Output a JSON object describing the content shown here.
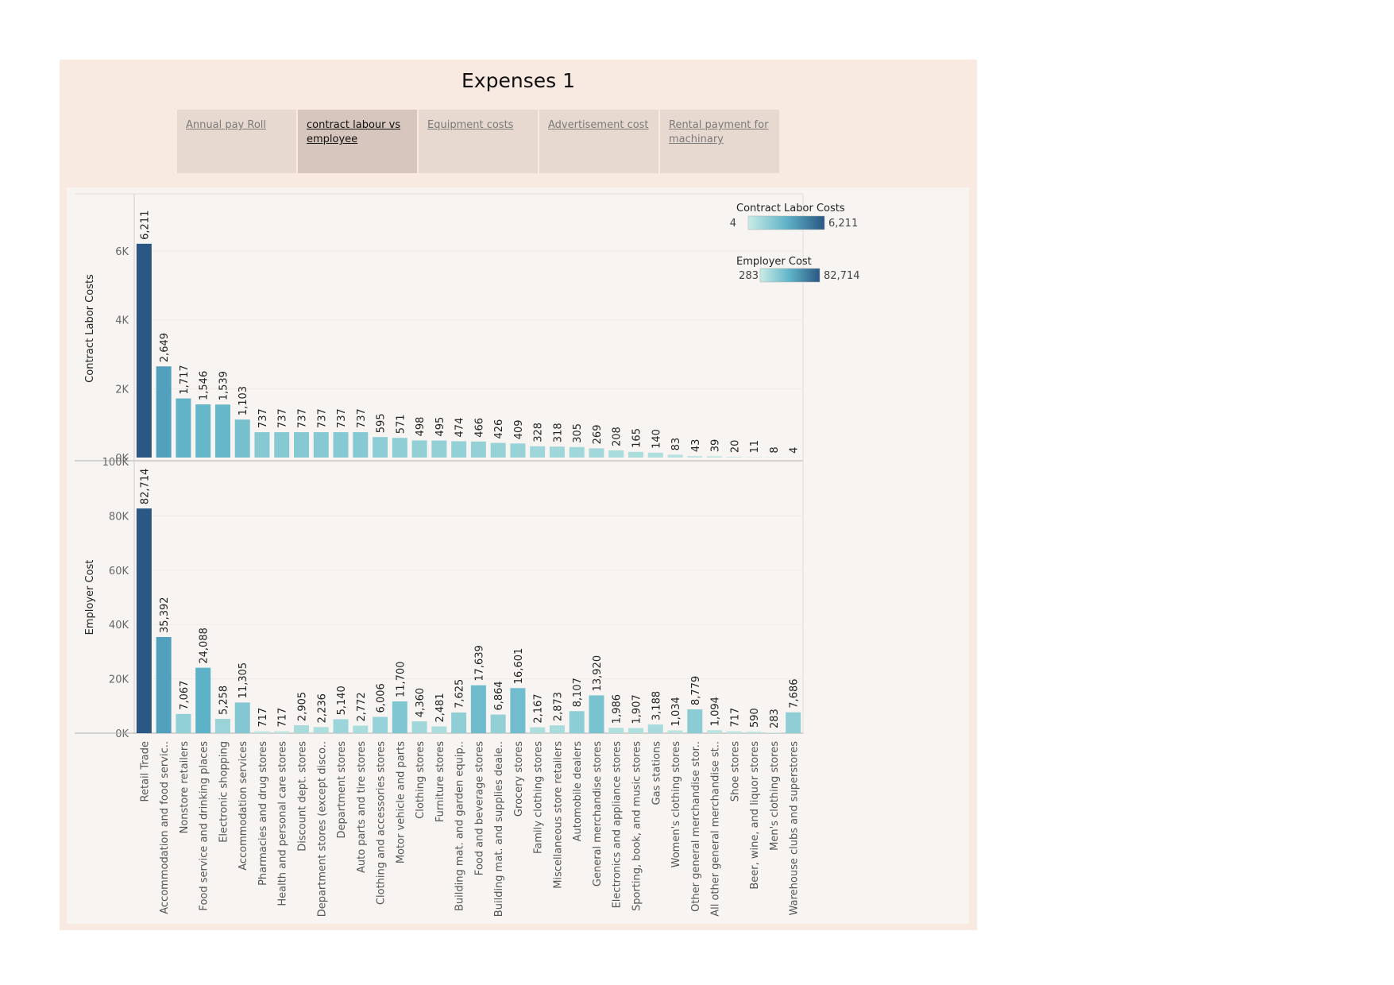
{
  "dashboard": {
    "title": "Expenses 1",
    "tabs": [
      {
        "label": "Annual pay Roll",
        "active": false
      },
      {
        "label": "contract labour vs employee",
        "active": true
      },
      {
        "label": "Equipment costs",
        "active": false
      },
      {
        "label": "Advertisement cost",
        "active": false
      },
      {
        "label": "Rental payment for machinary",
        "active": false
      }
    ]
  },
  "colors": {
    "dashboard_bg": "#f8e9e1",
    "chart_bg": "#f8f4f1",
    "scale_low": "#c9ece6",
    "scale_high": "#2a5783"
  },
  "chart_data": {
    "type": "bar",
    "categories": [
      "Retail Trade",
      "Accommodation and food servic..",
      "Nonstore retailers",
      "Food service and drinking places",
      "Electronic shopping",
      "Accommodation services",
      "Pharmacies and drug stores",
      "Health and personal care stores",
      "Discount dept. stores",
      "Department stores (except disco..",
      "Department stores",
      "Auto parts and tire stores",
      "Clothing and accessories stores",
      "Motor vehicle and parts",
      "Clothing stores",
      "Furniture stores",
      "Building mat. and garden equip..",
      "Food and beverage stores",
      "Building mat. and supplies deale..",
      "Grocery stores",
      "Family clothing stores",
      "Miscellaneous store retailers",
      "Automobile dealers",
      "General merchandise stores",
      "Electronics and appliance stores",
      "Sporting, book, and music stores",
      "Gas stations",
      "Women's clothing stores",
      "Other general merchandise stor..",
      "All other general merchandise st..",
      "Shoe stores",
      "Beer, wine, and liquor stores",
      "Men's clothing stores",
      "Warehouse clubs and superstores"
    ],
    "series": [
      {
        "name": "Contract Labor Costs",
        "values": [
          6211,
          2649,
          1717,
          1546,
          1539,
          1103,
          737,
          737,
          737,
          737,
          737,
          737,
          595,
          571,
          498,
          495,
          474,
          466,
          426,
          409,
          328,
          318,
          305,
          269,
          208,
          165,
          140,
          83,
          43,
          39,
          20,
          11,
          8,
          4
        ],
        "labels": [
          "6,211",
          "2,649",
          "1,717",
          "1,546",
          "1,539",
          "1,103",
          "737",
          "737",
          "737",
          "737",
          "737",
          "737",
          "595",
          "571",
          "498",
          "495",
          "474",
          "466",
          "426",
          "409",
          "328",
          "318",
          "305",
          "269",
          "208",
          "165",
          "140",
          "83",
          "43",
          "39",
          "20",
          "11",
          "8",
          "4"
        ],
        "ylabel": "Contract Labor Costs",
        "ylim": [
          0,
          7500
        ],
        "yticks": [
          0,
          2000,
          4000,
          6000
        ],
        "ytick_labels": [
          "0K",
          "2K",
          "4K",
          "6K"
        ],
        "legend": {
          "title": "Contract Labor Costs",
          "min": "4",
          "max": "6,211"
        }
      },
      {
        "name": "Employer Cost",
        "values": [
          82714,
          35392,
          7067,
          24088,
          5258,
          11305,
          717,
          717,
          2905,
          2236,
          5140,
          2772,
          6006,
          11700,
          4360,
          2481,
          7625,
          17639,
          6864,
          16601,
          2167,
          2873,
          8107,
          13920,
          1986,
          1907,
          3188,
          1034,
          8779,
          1094,
          717,
          590,
          283,
          7686
        ],
        "labels": [
          "82,714",
          "35,392",
          "7,067",
          "24,088",
          "5,258",
          "11,305",
          "717",
          "717",
          "2,905",
          "2,236",
          "5,140",
          "2,772",
          "6,006",
          "11,700",
          "4,360",
          "2,481",
          "7,625",
          "17,639",
          "6,864",
          "16,601",
          "2,167",
          "2,873",
          "8,107",
          "13,920",
          "1,986",
          "1,907",
          "3,188",
          "1,034",
          "8,779",
          "1,094",
          "717",
          "590",
          "283",
          "7,686"
        ],
        "ylabel": "Employer Cost",
        "ylim": [
          0,
          100000
        ],
        "yticks": [
          0,
          20000,
          40000,
          60000,
          80000,
          100000
        ],
        "ytick_labels": [
          "0K",
          "20K",
          "40K",
          "60K",
          "80K",
          "100K"
        ],
        "legend": {
          "title": "Employer Cost",
          "min": "283",
          "max": "82,714"
        }
      }
    ],
    "grid": true,
    "legend_position": "right"
  }
}
